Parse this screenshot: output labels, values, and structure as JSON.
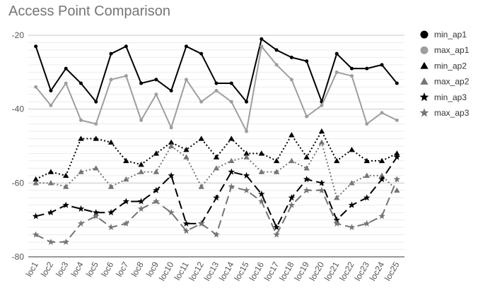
{
  "chart_data": {
    "type": "line",
    "title": "Access Point Comparison",
    "xlabel": "",
    "ylabel": "",
    "ylim": [
      -80,
      -20
    ],
    "yticks": [
      -80,
      -60,
      -40,
      -20
    ],
    "grid": true,
    "legend_position": "right",
    "categories": [
      "loc1",
      "loc2",
      "loc3",
      "loc4",
      "loc5",
      "loc6",
      "loc7",
      "loc8",
      "loc9",
      "loc10",
      "loc11",
      "loc12",
      "loc13",
      "loc14",
      "loc15",
      "loc16",
      "loc17",
      "loc18",
      "loc19",
      "loc20",
      "loc21",
      "loc22",
      "loc23",
      "loc24",
      "loc25"
    ],
    "series": [
      {
        "name": "min_ap1",
        "color": "#000000",
        "marker": "circle",
        "dash": "solid",
        "values": [
          -23,
          -35,
          -29,
          -33,
          -38,
          -25,
          -23,
          -33,
          -32,
          -35,
          -23,
          -25,
          -33,
          -33,
          -38,
          -21,
          -24,
          -26,
          -27,
          -38,
          -25,
          -29,
          -29,
          -28,
          -33
        ]
      },
      {
        "name": "max_ap1",
        "color": "#9e9e9e",
        "marker": "circle",
        "dash": "solid",
        "values": [
          -34,
          -39,
          -33,
          -43,
          -44,
          -32,
          -31,
          -43,
          -36,
          -45,
          -32,
          -38,
          -35,
          -38,
          -46,
          -23,
          -28,
          -32,
          -42,
          -39,
          -30,
          -31,
          -44,
          -41,
          -43
        ]
      },
      {
        "name": "min_ap2",
        "color": "#000000",
        "marker": "triangle",
        "dash": "dotted",
        "values": [
          -59,
          -57,
          -58,
          -48,
          -48,
          -49,
          -54,
          -55,
          -52,
          -49,
          -51,
          -48,
          -53,
          -48,
          -52,
          -52,
          -54,
          -47,
          -53,
          -46,
          -54,
          -51,
          -54,
          -54,
          -52
        ]
      },
      {
        "name": "max_ap2",
        "color": "#757575",
        "marker": "triangle",
        "dash": "dotted",
        "values": [
          -60,
          -60,
          -61,
          -57,
          -56,
          -61,
          -59,
          -57,
          -57,
          -50,
          -53,
          -61,
          -56,
          -54,
          -53,
          -57,
          -57,
          -54,
          -56,
          -49,
          -64,
          -60,
          -58,
          -58,
          -62
        ]
      },
      {
        "name": "min_ap3",
        "color": "#000000",
        "marker": "star",
        "dash": "dashed",
        "values": [
          -69,
          -68,
          -66,
          -67,
          -68,
          -68,
          -65,
          -65,
          -62,
          -58,
          -71,
          -71,
          -64,
          -57,
          -58,
          -63,
          -72,
          -64,
          -59,
          -60,
          -70,
          -66,
          -64,
          -59,
          -53
        ]
      },
      {
        "name": "max_ap3",
        "color": "#757575",
        "marker": "star",
        "dash": "dashed",
        "values": [
          -74,
          -76,
          -76,
          -71,
          -69,
          -72,
          -71,
          -67,
          -65,
          -68,
          -73,
          -71,
          -74,
          -61,
          -62,
          -65,
          -74,
          -66,
          -62,
          -62,
          -71,
          -72,
          -71,
          -69,
          -59
        ]
      }
    ]
  }
}
